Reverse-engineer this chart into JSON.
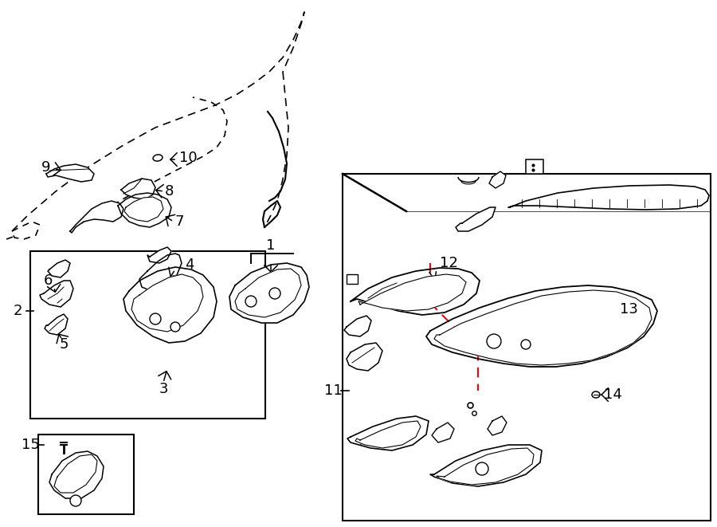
{
  "bg_color": "#ffffff",
  "line_color": "#000000",
  "red_color": "#ff0000",
  "figsize": [
    9.0,
    6.61
  ],
  "dpi": 100,
  "lw": 1.3,
  "fs_label": 13
}
